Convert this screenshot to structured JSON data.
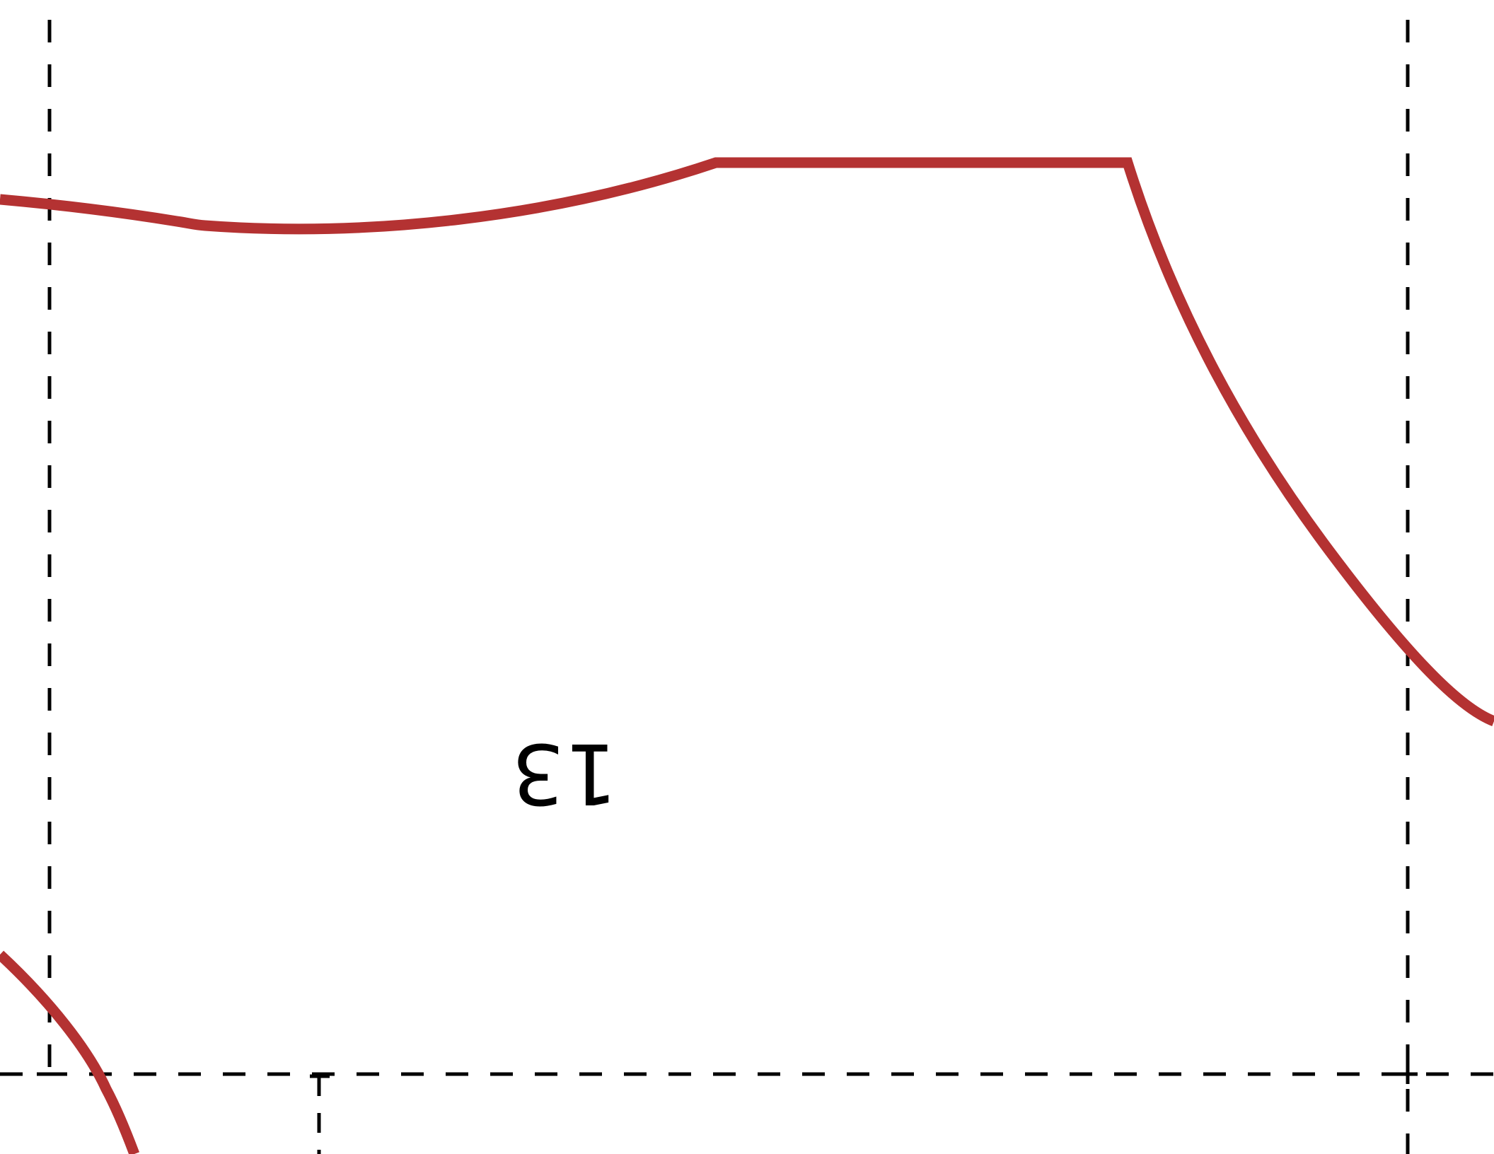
{
  "pattern_sheet": {
    "piece_number": "13",
    "piece_number_rotated": true,
    "cut_line_color": "#b43232",
    "guide_line_color": "#000000",
    "background_color": "#ffffff"
  }
}
